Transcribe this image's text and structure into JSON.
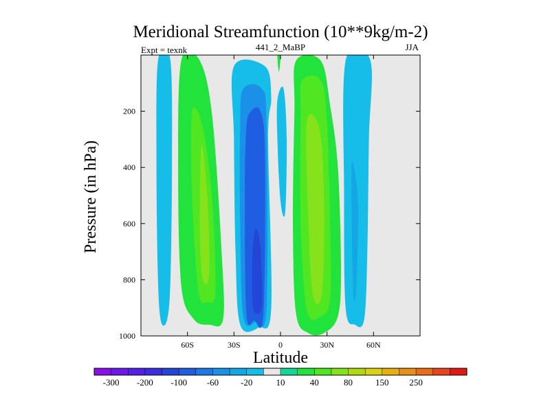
{
  "chart_data": {
    "type": "contour",
    "title": "Meridional Streamfunction (10**9kg/m-2)",
    "left_label": "Expt = texnk",
    "center_label": "441_2_MaBP",
    "right_label": "JJA",
    "xlabel": "Latitude",
    "ylabel": "Pressure (in hPa)",
    "xlim": [
      -90,
      90
    ],
    "ylim": [
      0,
      1000
    ],
    "y_inverted": true,
    "x_ticks": [
      {
        "value": -60,
        "label": "60S"
      },
      {
        "value": -30,
        "label": "30S"
      },
      {
        "value": 0,
        "label": "0"
      },
      {
        "value": 30,
        "label": "30N"
      },
      {
        "value": 60,
        "label": "60N"
      }
    ],
    "y_ticks": [
      {
        "value": 200,
        "label": "200"
      },
      {
        "value": 400,
        "label": "400"
      },
      {
        "value": 600,
        "label": "600"
      },
      {
        "value": 800,
        "label": "800"
      },
      {
        "value": 1000,
        "label": "1000"
      }
    ],
    "colorbar": {
      "colors": [
        "#8a10e8",
        "#6f18ea",
        "#5222e6",
        "#3a2ee0",
        "#2346d8",
        "#1f5ee0",
        "#1c78e6",
        "#1a90e8",
        "#15a6e6",
        "#15bde8",
        "#e8e8e8",
        "#16d598",
        "#22e23c",
        "#50e622",
        "#86e21a",
        "#b2d814",
        "#dcd214",
        "#e6b012",
        "#e8901a",
        "#e86c1a",
        "#e6461c",
        "#e21a16"
      ],
      "levels": [
        "-300",
        "-250",
        "-200",
        "-150",
        "-100",
        "-80",
        "-60",
        "-40",
        "-20",
        "-10",
        "10",
        "20",
        "40",
        "60",
        "80",
        "100",
        "150",
        "200",
        "250",
        "300"
      ],
      "shown_labels": [
        "-300",
        "-200",
        "-100",
        "-60",
        "-20",
        "10",
        "40",
        "80",
        "150",
        "250"
      ]
    },
    "bands": [
      {
        "name": "sh-polar-cell",
        "lat_center": -75,
        "pressure_top": 20,
        "pressure_bottom": 950,
        "outline": [
          [
            -79,
            20
          ],
          [
            -71,
            20
          ],
          [
            -70,
            400
          ],
          [
            -71,
            800
          ],
          [
            -73,
            940
          ],
          [
            -77,
            950
          ],
          [
            -79,
            800
          ],
          [
            -80,
            400
          ]
        ],
        "layers": [
          {
            "value": -20
          }
        ]
      },
      {
        "name": "sh-ferrel-cell",
        "lat_center": -52,
        "pressure_top": 20,
        "pressure_bottom": 960,
        "outline": [
          [
            -64,
            20
          ],
          [
            -52,
            20
          ],
          [
            -44,
            220
          ],
          [
            -38,
            700
          ],
          [
            -37,
            940
          ],
          [
            -46,
            960
          ],
          [
            -56,
            940
          ],
          [
            -64,
            820
          ],
          [
            -66,
            400
          ]
        ],
        "layers": [
          {
            "value": 20
          },
          {
            "value": 40,
            "outline": [
              [
                -57,
                200
              ],
              [
                -50,
                260
              ],
              [
                -44,
                520
              ],
              [
                -42,
                840
              ],
              [
                -47,
                880
              ],
              [
                -53,
                840
              ],
              [
                -57,
                500
              ]
            ]
          },
          {
            "value": 60,
            "outline": [
              [
                -51,
                320
              ],
              [
                -47,
                520
              ],
              [
                -46,
                780
              ],
              [
                -50,
                800
              ],
              [
                -52,
                640
              ]
            ]
          }
        ]
      },
      {
        "name": "sh-hadley-cell",
        "lat_center": -15,
        "pressure_top": 20,
        "pressure_bottom": 990,
        "outline": [
          [
            -36,
            20
          ],
          [
            -5,
            20
          ],
          [
            -1,
            150
          ],
          [
            -4,
            260
          ],
          [
            -3,
            700
          ],
          [
            -3,
            960
          ],
          [
            -12,
            990
          ],
          [
            -26,
            985
          ],
          [
            -32,
            880
          ],
          [
            -34,
            500
          ],
          [
            -36,
            180
          ]
        ],
        "layers": [
          {
            "value": -20,
            "outline": [
              [
                -30,
                40
              ],
              [
                -10,
                40
              ],
              [
                -6,
                150
              ],
              [
                -8,
                300
              ],
              [
                -6,
                900
              ],
              [
                -14,
                970
              ],
              [
                -26,
                960
              ],
              [
                -29,
                700
              ],
              [
                -30,
                300
              ]
            ]
          },
          {
            "value": -60,
            "outline": [
              [
                -24,
                120
              ],
              [
                -12,
                120
              ],
              [
                -9,
                250
              ],
              [
                -9,
                900
              ],
              [
                -16,
                950
              ],
              [
                -24,
                930
              ],
              [
                -26,
                600
              ],
              [
                -26,
                250
              ]
            ]
          },
          {
            "value": -100,
            "outline": [
              [
                -19,
                200
              ],
              [
                -13,
                200
              ],
              [
                -10,
                350
              ],
              [
                -11,
                920
              ],
              [
                -17,
                945
              ],
              [
                -22,
                920
              ],
              [
                -23,
                500
              ],
              [
                -22,
                260
              ]
            ]
          },
          {
            "value": -150,
            "outline": [
              [
                -16,
                620
              ],
              [
                -13,
                680
              ],
              [
                -12,
                890
              ],
              [
                -16,
                920
              ],
              [
                -18,
                880
              ],
              [
                -18,
                700
              ]
            ]
          }
        ]
      },
      {
        "name": "equatorial-weak-cell",
        "lat_center": 0,
        "pressure_top": 20,
        "pressure_bottom": 560,
        "outline": [
          [
            -2,
            160
          ],
          [
            2,
            120
          ],
          [
            4,
            300
          ],
          [
            3,
            560
          ],
          [
            0,
            520
          ],
          [
            -2,
            300
          ]
        ],
        "layers": [
          {
            "value": -20
          }
        ]
      },
      {
        "name": "nh-hadley-cell",
        "lat_center": 18,
        "pressure_top": 20,
        "pressure_bottom": 990,
        "outline": [
          [
            10,
            20
          ],
          [
            26,
            20
          ],
          [
            32,
            180
          ],
          [
            37,
            400
          ],
          [
            39,
            760
          ],
          [
            37,
            930
          ],
          [
            28,
            990
          ],
          [
            18,
            990
          ],
          [
            10,
            920
          ],
          [
            8,
            600
          ],
          [
            9,
            200
          ]
        ],
        "layers": [
          {
            "value": 20
          },
          {
            "value": 40,
            "outline": [
              [
                14,
                90
              ],
              [
                26,
                90
              ],
              [
                30,
                240
              ],
              [
                32,
                600
              ],
              [
                32,
                870
              ],
              [
                26,
                930
              ],
              [
                17,
                910
              ],
              [
                13,
                600
              ],
              [
                13,
                220
              ]
            ]
          },
          {
            "value": 60,
            "outline": [
              [
                17,
                240
              ],
              [
                25,
                260
              ],
              [
                28,
                500
              ],
              [
                27,
                840
              ],
              [
                21,
                860
              ],
              [
                18,
                600
              ]
            ]
          }
        ]
      },
      {
        "name": "nh-polar-cell",
        "lat_center": 48,
        "pressure_top": 20,
        "pressure_bottom": 960,
        "outline": [
          [
            42,
            20
          ],
          [
            58,
            20
          ],
          [
            57,
            300
          ],
          [
            56,
            700
          ],
          [
            54,
            940
          ],
          [
            48,
            960
          ],
          [
            42,
            900
          ],
          [
            41,
            500
          ]
        ],
        "layers": [
          {
            "value": -20
          },
          {
            "value": -40,
            "outline": [
              [
                46,
                380
              ],
              [
                50,
                520
              ],
              [
                49,
                820
              ],
              [
                47,
                860
              ],
              [
                46,
                600
              ]
            ]
          }
        ]
      },
      {
        "name": "equator-top-sliver",
        "lat_center": -1,
        "pressure_top": 0,
        "pressure_bottom": 60,
        "outline": [
          [
            -2,
            0
          ],
          [
            0,
            0
          ],
          [
            -1,
            60
          ]
        ],
        "layers": [
          {
            "value": 20
          }
        ]
      }
    ]
  }
}
